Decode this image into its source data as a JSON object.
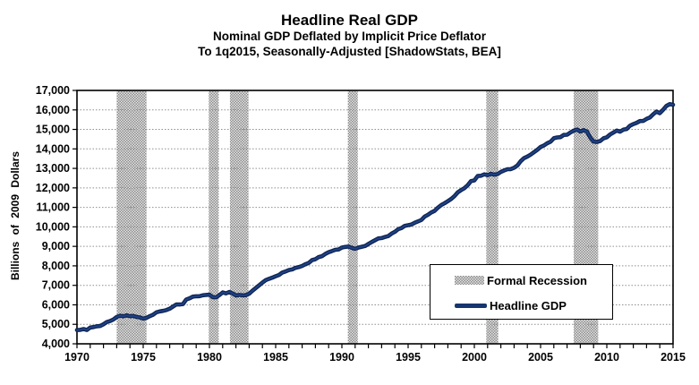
{
  "title": "Headline Real GDP",
  "subtitle1": "Nominal GDP Deflated by Implicit Price Deflator",
  "subtitle2": "To 1q2015, Seasonally-Adjusted [ShadowStats, BEA]",
  "legend": {
    "items": [
      {
        "label": "Formal Recession",
        "swatch": "recession-band"
      },
      {
        "label": "Headline GDP",
        "swatch": "gdp-line"
      }
    ]
  },
  "colors": {
    "gdp_line": "#16356F",
    "gdp_line_core": "#1F4287",
    "gdp_line_edge": "#0E2350",
    "recession_dark": "#8a8a8a",
    "recession_light": "#e6e6e6",
    "grid": "#8f8f8f",
    "axis": "#000000",
    "background": "#ffffff",
    "text": "#000000"
  },
  "chart_data": {
    "type": "line",
    "title": "Headline Real GDP",
    "subtitle": "Nominal GDP Deflated by Implicit Price Deflator To 1q2015, Seasonally-Adjusted [ShadowStats, BEA]",
    "xlabel": "",
    "ylabel": "Billions of 2009 Dollars",
    "xlim": [
      1970,
      2015
    ],
    "ylim": [
      4000,
      17000
    ],
    "y_tick_step": 1000,
    "y_tick_labels": [
      "4,000",
      "5,000",
      "6,000",
      "7,000",
      "8,000",
      "9,000",
      "10,000",
      "11,000",
      "12,000",
      "13,000",
      "14,000",
      "15,000",
      "16,000",
      "17,000"
    ],
    "x_tick_labels": [
      "1970",
      "1975",
      "1980",
      "1985",
      "1990",
      "1995",
      "2000",
      "2005",
      "2010",
      "2015"
    ],
    "x_minor_tick_every_years": 1,
    "grid": "horizontal-dotted",
    "legend_position": "lower-right-inside",
    "recession_bands": {
      "name": "Formal Recession",
      "intervals": [
        [
          1973.0,
          1975.25
        ],
        [
          1979.95,
          1980.7
        ],
        [
          1981.55,
          1982.95
        ],
        [
          1990.45,
          1991.2
        ],
        [
          2000.9,
          2001.8
        ],
        [
          2007.5,
          2009.35
        ]
      ]
    },
    "series": [
      {
        "name": "Headline GDP",
        "start_year": 1970,
        "step_years": 0.25,
        "values": [
          4707,
          4715,
          4757,
          4708,
          4834,
          4861,
          4900,
          4914,
          5002,
          5118,
          5165,
          5251,
          5380,
          5441,
          5411,
          5462,
          5417,
          5431,
          5378,
          5357,
          5292,
          5333,
          5421,
          5494,
          5618,
          5661,
          5689,
          5732,
          5799,
          5913,
          6017,
          6018,
          6040,
          6274,
          6335,
          6420,
          6440,
          6444,
          6491,
          6508,
          6524,
          6392,
          6382,
          6501,
          6635,
          6587,
          6662,
          6585,
          6475,
          6510,
          6486,
          6493,
          6574,
          6726,
          6860,
          7001,
          7141,
          7266,
          7337,
          7396,
          7467,
          7532,
          7655,
          7712,
          7784,
          7819,
          7898,
          7939,
          7995,
          8082,
          8151,
          8293,
          8340,
          8449,
          8498,
          8610,
          8697,
          8758,
          8823,
          8841,
          8938,
          8971,
          8990,
          8920,
          8873,
          8938,
          8978,
          9016,
          9123,
          9223,
          9313,
          9407,
          9424,
          9480,
          9526,
          9653,
          9748,
          9881,
          9939,
          10053,
          10086,
          10122,
          10209,
          10281,
          10354,
          10527,
          10621,
          10741,
          10820,
          10985,
          11122,
          11211,
          11316,
          11431,
          11581,
          11771,
          11888,
          11987,
          12140,
          12350,
          12384,
          12608,
          12622,
          12696,
          12650,
          12725,
          12678,
          12710,
          12822,
          12893,
          12956,
          12964,
          13031,
          13152,
          13372,
          13528,
          13606,
          13706,
          13831,
          13951,
          14100,
          14177,
          14292,
          14368,
          14546,
          14590,
          14603,
          14716,
          14726,
          14839,
          14938,
          14991,
          14890,
          14963,
          14892,
          14577,
          14375,
          14355,
          14403,
          14542,
          14598,
          14738,
          14839,
          14943,
          14881,
          14989,
          15021,
          15190,
          15275,
          15336,
          15431,
          15434,
          15538,
          15606,
          15779,
          15916,
          15832,
          16010,
          16205,
          16295,
          16264
        ]
      }
    ]
  }
}
